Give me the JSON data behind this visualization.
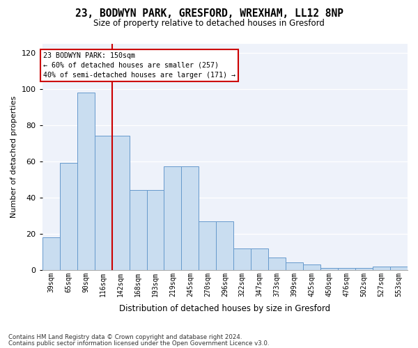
{
  "title_line1": "23, BODWYN PARK, GRESFORD, WREXHAM, LL12 8NP",
  "title_line2": "Size of property relative to detached houses in Gresford",
  "xlabel": "Distribution of detached houses by size in Gresford",
  "ylabel": "Number of detached properties",
  "categories": [
    "39sqm",
    "65sqm",
    "90sqm",
    "116sqm",
    "142sqm",
    "168sqm",
    "193sqm",
    "219sqm",
    "245sqm",
    "270sqm",
    "296sqm",
    "322sqm",
    "347sqm",
    "373sqm",
    "399sqm",
    "425sqm",
    "450sqm",
    "476sqm",
    "502sqm",
    "527sqm",
    "553sqm"
  ],
  "bar_values": [
    18,
    59,
    98,
    74,
    74,
    44,
    44,
    57,
    57,
    27,
    27,
    12,
    12,
    7,
    4,
    3,
    1,
    1,
    1,
    2,
    2
  ],
  "bar_color": "#c9ddf0",
  "bar_edge_color": "#6699cc",
  "vline_x": 4.0,
  "vline_color": "#cc0000",
  "annotation_title": "23 BODWYN PARK: 150sqm",
  "annotation_line2": "← 60% of detached houses are smaller (257)",
  "annotation_line3": "40% of semi-detached houses are larger (171) →",
  "annotation_box_color": "#cc0000",
  "ylim": [
    0,
    125
  ],
  "yticks": [
    0,
    20,
    40,
    60,
    80,
    100,
    120
  ],
  "background_color": "#eef2fa",
  "footer_line1": "Contains HM Land Registry data © Crown copyright and database right 2024.",
  "footer_line2": "Contains public sector information licensed under the Open Government Licence v3.0."
}
